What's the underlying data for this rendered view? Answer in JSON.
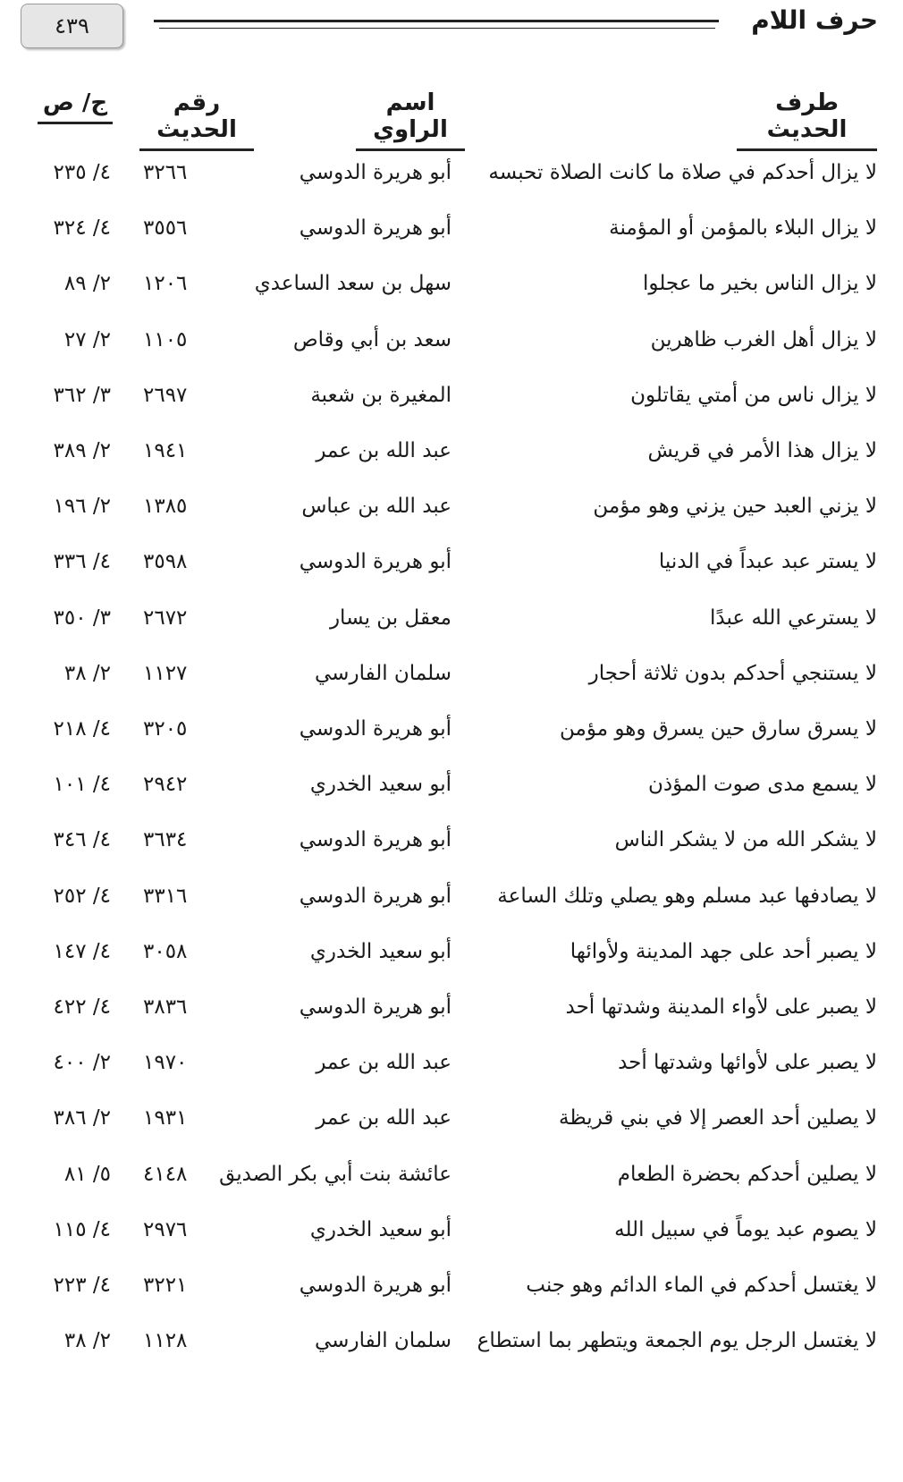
{
  "header": {
    "page_number": "٤٣٩",
    "chapter_title": "حرف اللام"
  },
  "columns": {
    "text": "طرف الحديث",
    "narrator": "اسم الراوي",
    "number": "رقم الحديث",
    "volume_page": "ج/ ص"
  },
  "rows": [
    {
      "text": "لا يزال أحدكم في صلاة ما كانت الصلاة تحبسه",
      "narrator": "أبو هريرة الدوسي",
      "number": "٣٢٦٦",
      "volume_page": "٤/ ٢٣٥"
    },
    {
      "text": "لا يزال البلاء بالمؤمن أو المؤمنة",
      "narrator": "أبو هريرة الدوسي",
      "number": "٣٥٥٦",
      "volume_page": "٤/ ٣٢٤"
    },
    {
      "text": "لا يزال الناس بخير ما عجلوا",
      "narrator": "سهل بن سعد الساعدي",
      "number": "١٢٠٦",
      "volume_page": "٢/ ٨٩"
    },
    {
      "text": "لا يزال أهل الغرب ظاهرين",
      "narrator": "سعد بن أبي وقاص",
      "number": "١١٠٥",
      "volume_page": "٢/ ٢٧"
    },
    {
      "text": "لا يزال ناس من أمتي يقاتلون",
      "narrator": "المغيرة بن شعبة",
      "number": "٢٦٩٧",
      "volume_page": "٣/ ٣٦٢"
    },
    {
      "text": "لا يزال هذا الأمر في قريش",
      "narrator": "عبد الله بن عمر",
      "number": "١٩٤١",
      "volume_page": "٢/ ٣٨٩"
    },
    {
      "text": "لا يزني العبد حين يزني وهو مؤمن",
      "narrator": "عبد الله بن عباس",
      "number": "١٣٨٥",
      "volume_page": "٢/ ١٩٦"
    },
    {
      "text": "لا يستر عبد عبداً في الدنيا",
      "narrator": "أبو هريرة الدوسي",
      "number": "٣٥٩٨",
      "volume_page": "٤/ ٣٣٦"
    },
    {
      "text": "لا يسترعي الله عبدًا",
      "narrator": "معقل بن يسار",
      "number": "٢٦٧٢",
      "volume_page": "٣/ ٣٥٠"
    },
    {
      "text": "لا يستنجي أحدكم بدون ثلاثة أحجار",
      "narrator": "سلمان الفارسي",
      "number": "١١٢٧",
      "volume_page": "٢/ ٣٨"
    },
    {
      "text": "لا يسرق سارق حين يسرق وهو مؤمن",
      "narrator": "أبو هريرة الدوسي",
      "number": "٣٢٠٥",
      "volume_page": "٤/ ٢١٨"
    },
    {
      "text": "لا يسمع مدى صوت المؤذن",
      "narrator": "أبو سعيد الخدري",
      "number": "٢٩٤٢",
      "volume_page": "٤/ ١٠١"
    },
    {
      "text": "لا يشكر الله من لا يشكر الناس",
      "narrator": "أبو هريرة الدوسي",
      "number": "٣٦٣٤",
      "volume_page": "٤/ ٣٤٦"
    },
    {
      "text": "لا يصادفها عبد مسلم وهو يصلي وتلك الساعة",
      "narrator": "أبو هريرة الدوسي",
      "number": "٣٣١٦",
      "volume_page": "٤/ ٢٥٢"
    },
    {
      "text": "لا يصبر أحد على جهد المدينة ولأوائها",
      "narrator": "أبو سعيد الخدري",
      "number": "٣٠٥٨",
      "volume_page": "٤/ ١٤٧"
    },
    {
      "text": "لا يصبر على لأواء المدينة وشدتها أحد",
      "narrator": "أبو هريرة الدوسي",
      "number": "٣٨٣٦",
      "volume_page": "٤/ ٤٢٢"
    },
    {
      "text": "لا يصبر على لأوائها وشدتها أحد",
      "narrator": "عبد الله بن عمر",
      "number": "١٩٧٠",
      "volume_page": "٢/ ٤٠٠"
    },
    {
      "text": "لا يصلين أحد العصر إلا في بني قريظة",
      "narrator": "عبد الله بن عمر",
      "number": "١٩٣١",
      "volume_page": "٢/ ٣٨٦"
    },
    {
      "text": "لا يصلين أحدكم بحضرة الطعام",
      "narrator": "عائشة بنت أبي بكر الصديق",
      "number": "٤١٤٨",
      "volume_page": "٥/ ٨١"
    },
    {
      "text": "لا يصوم عبد يوماً في سبيل الله",
      "narrator": "أبو سعيد الخدري",
      "number": "٢٩٧٦",
      "volume_page": "٤/ ١١٥"
    },
    {
      "text": "لا يغتسل أحدكم في الماء الدائم وهو جنب",
      "narrator": "أبو هريرة الدوسي",
      "number": "٣٢٢١",
      "volume_page": "٤/ ٢٢٣"
    },
    {
      "text": "لا يغتسل الرجل يوم الجمعة ويتطهر بما استطاع",
      "narrator": "سلمان الفارسي",
      "number": "١١٢٨",
      "volume_page": "٢/ ٣٨"
    }
  ]
}
